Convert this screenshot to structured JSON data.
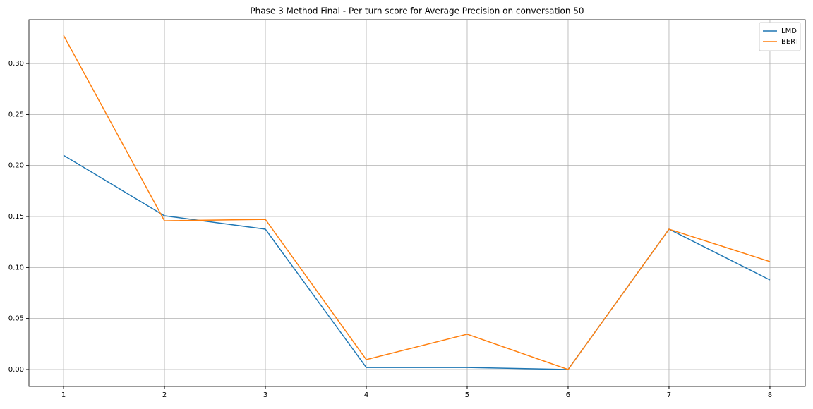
{
  "chart_data": {
    "type": "line",
    "title": "Phase 3 Method Final - Per turn score for Average Precision on conversation 50",
    "x": [
      1,
      2,
      3,
      4,
      5,
      6,
      7,
      8
    ],
    "series": [
      {
        "name": "LMD",
        "color": "#1f77b4",
        "values": [
          0.21,
          0.1507,
          0.1376,
          0.002,
          0.002,
          0.0,
          0.1376,
          0.0878
        ]
      },
      {
        "name": "BERT",
        "color": "#ff7f0e",
        "values": [
          0.3276,
          0.1458,
          0.1472,
          0.0097,
          0.0346,
          0.0,
          0.1376,
          0.1058
        ]
      }
    ],
    "xlim": [
      0.657,
      8.35
    ],
    "ylim": [
      -0.0166,
      0.3429
    ],
    "xticks": [
      1,
      2,
      3,
      4,
      5,
      6,
      7,
      8
    ],
    "yticks": [
      {
        "value": 0,
        "label": "0.00"
      },
      {
        "value": 0.05,
        "label": "0.05"
      },
      {
        "value": 0.1,
        "label": "0.10"
      },
      {
        "value": 0.15,
        "label": "0.15"
      },
      {
        "value": 0.2,
        "label": "0.20"
      },
      {
        "value": 0.25,
        "label": "0.25"
      },
      {
        "value": 0.3,
        "label": "0.30"
      }
    ],
    "grid": true,
    "legend": "upper right"
  }
}
